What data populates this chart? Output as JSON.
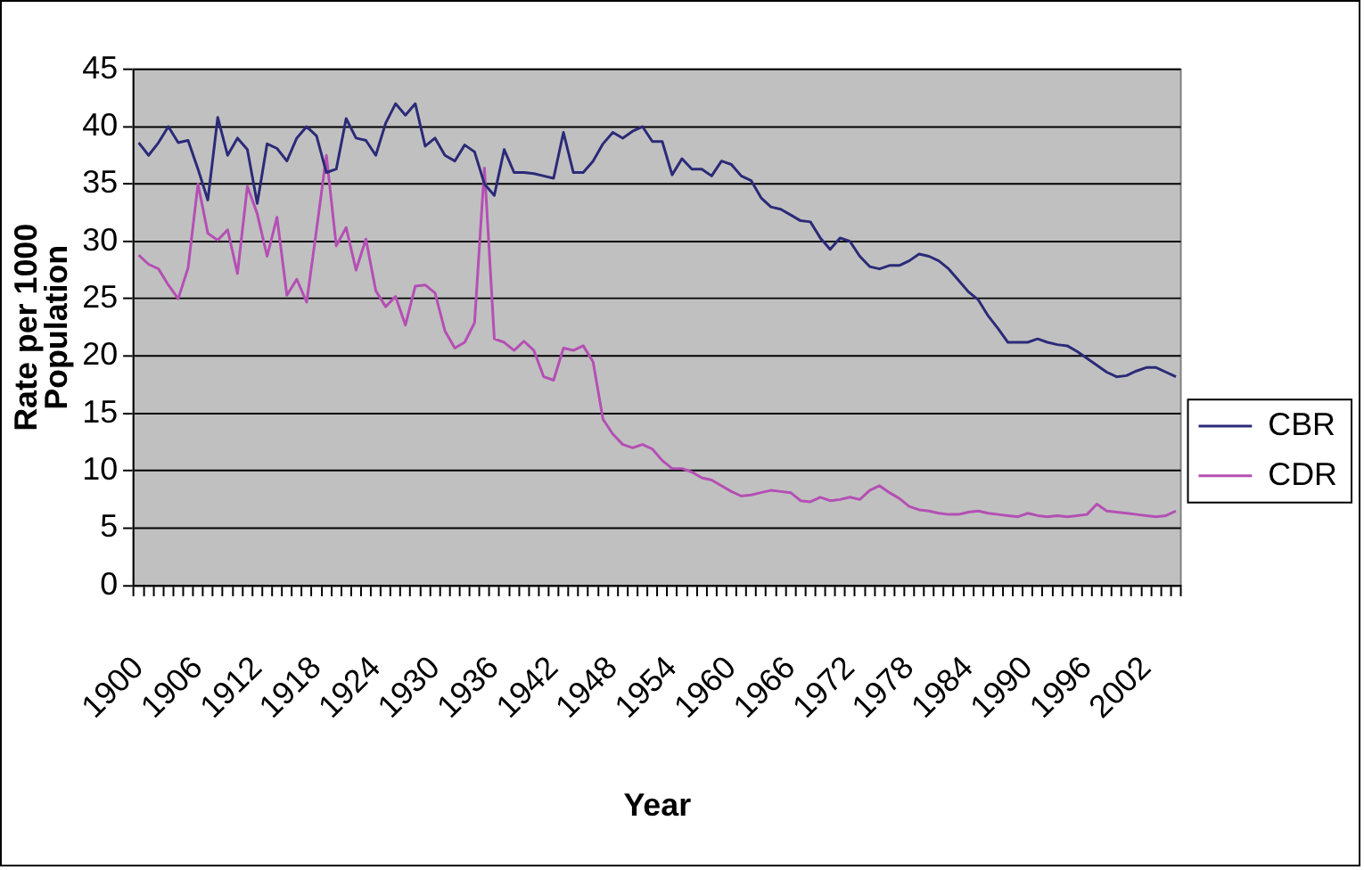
{
  "chart_data": {
    "type": "line",
    "xlabel": "Year",
    "ylabel": "Rate per 1000\nPopulation",
    "categories": [
      "1900",
      null,
      null,
      null,
      null,
      null,
      "1906",
      null,
      null,
      null,
      null,
      null,
      "1912",
      null,
      null,
      null,
      null,
      null,
      "1918",
      null,
      null,
      null,
      null,
      null,
      "1924",
      null,
      null,
      null,
      null,
      null,
      "1930",
      null,
      null,
      null,
      null,
      null,
      "1936",
      null,
      null,
      null,
      null,
      null,
      "1942",
      null,
      null,
      null,
      null,
      null,
      "1948",
      null,
      null,
      null,
      null,
      null,
      "1954",
      null,
      null,
      null,
      null,
      null,
      "1960",
      null,
      null,
      null,
      null,
      null,
      "1966",
      null,
      null,
      null,
      null,
      null,
      "1972",
      null,
      null,
      null,
      null,
      null,
      "1978",
      null,
      null,
      null,
      null,
      null,
      "1984",
      null,
      null,
      null,
      null,
      null,
      "1990",
      null,
      null,
      null,
      null,
      null,
      "1996",
      null,
      null,
      null,
      null,
      null,
      "2002",
      null,
      null,
      null
    ],
    "series": [
      {
        "name": "CBR",
        "color": "#2b2a78",
        "values": [
          38.6,
          37.5,
          38.6,
          40,
          38.6,
          38.8,
          36.3,
          33.6,
          40.8,
          37.5,
          39,
          38,
          33.3,
          38.5,
          38.1,
          37,
          39,
          40,
          39.2,
          36,
          36.3,
          40.7,
          39,
          38.8,
          37.5,
          40.3,
          42,
          41,
          42,
          38.3,
          39,
          37.5,
          37,
          38.4,
          37.8,
          35,
          34,
          38,
          36,
          36,
          35.9,
          35.7,
          35.5,
          39.5,
          36,
          36,
          37,
          38.5,
          39.5,
          39,
          39.6,
          40,
          38.7,
          38.7,
          35.8,
          37.2,
          36.3,
          36.3,
          35.7,
          37,
          36.7,
          35.7,
          35.3,
          33.8,
          33,
          32.8,
          32.3,
          31.8,
          31.7,
          30.3,
          29.3,
          30.3,
          30,
          28.7,
          27.8,
          27.6,
          27.9,
          27.9,
          28.3,
          28.9,
          28.7,
          28.3,
          27.6,
          26.6,
          25.6,
          24.9,
          23.5,
          22.4,
          21.2,
          21.2,
          21.2,
          21.5,
          21.2,
          21,
          20.9,
          20.4,
          19.8,
          19.2,
          18.6,
          18.2,
          18.3,
          18.7,
          19,
          19,
          18.6,
          18.2
        ]
      },
      {
        "name": "CDR",
        "color": "#b44fb4",
        "values": [
          28.8,
          28,
          27.6,
          26.2,
          25,
          27.7,
          35,
          30.7,
          30.1,
          31,
          27.2,
          34.8,
          32.4,
          28.7,
          32.1,
          25.3,
          26.7,
          24.7,
          31,
          37.5,
          29.6,
          31.2,
          27.5,
          30.2,
          25.7,
          24.3,
          25.2,
          22.7,
          26.1,
          26.2,
          25.5,
          22.2,
          20.7,
          21.2,
          22.9,
          36.4,
          21.5,
          21.2,
          20.5,
          21.3,
          20.5,
          18.2,
          17.9,
          20.7,
          20.5,
          20.9,
          19.5,
          14.5,
          13.2,
          12.3,
          12,
          12.3,
          11.9,
          10.9,
          10.2,
          10.2,
          9.9,
          9.4,
          9.2,
          8.7,
          8.2,
          7.8,
          7.9,
          8.1,
          8.3,
          8.2,
          8.1,
          7.4,
          7.3,
          7.7,
          7.4,
          7.5,
          7.7,
          7.5,
          8.3,
          8.7,
          8.1,
          7.6,
          6.9,
          6.6,
          6.5,
          6.3,
          6.2,
          6.2,
          6.4,
          6.5,
          6.3,
          6.2,
          6.1,
          6,
          6.3,
          6.1,
          6,
          6.1,
          6,
          6.1,
          6.2,
          7.1,
          6.5,
          6.4,
          6.3,
          6.2,
          6.1,
          6,
          6.1,
          6.5
        ]
      }
    ],
    "ylim": [
      0,
      45
    ],
    "yticks": [
      0,
      5,
      10,
      15,
      20,
      25,
      30,
      35,
      40,
      45
    ],
    "grid": "y",
    "legend": "right",
    "marker": "none",
    "line_style": "solid"
  }
}
